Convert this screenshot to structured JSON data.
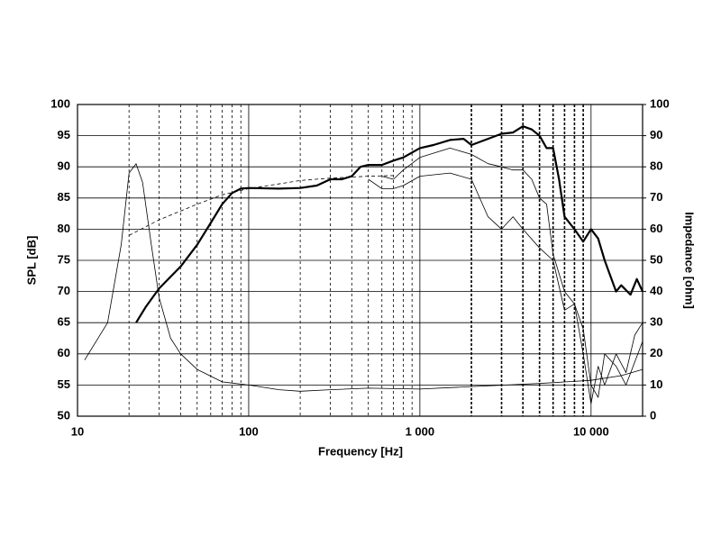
{
  "chart_data": {
    "type": "line",
    "xlabel": "Frequency [Hz]",
    "ylabel": "SPL [dB]",
    "y2label": "Impedance [ohm]",
    "xscale": "log",
    "xlim": [
      10,
      20000
    ],
    "xticks": [
      10,
      100,
      {
        "value": 1000,
        "label": "1 000"
      },
      {
        "value": 10000,
        "label": "10 000"
      }
    ],
    "xminor": [
      20,
      30,
      40,
      50,
      60,
      70,
      80,
      90,
      200,
      300,
      400,
      500,
      600,
      700,
      800,
      900,
      2000,
      3000,
      4000,
      5000,
      6000,
      7000,
      8000,
      9000
    ],
    "ylim": [
      50,
      100
    ],
    "yticks": [
      50,
      55,
      60,
      65,
      70,
      75,
      80,
      85,
      90,
      95,
      100
    ],
    "y2lim": [
      0,
      100
    ],
    "y2ticks": [
      0,
      10,
      20,
      30,
      40,
      50,
      60,
      70,
      80,
      90,
      100
    ],
    "grid": true,
    "series": [
      {
        "color": "#000000",
        "width": 2.2,
        "x": [
          22,
          25,
          30,
          40,
          50,
          60,
          70,
          80,
          90,
          100,
          150,
          200,
          250,
          300,
          350,
          400,
          450,
          500,
          600,
          700,
          800,
          1000,
          1200,
          1500,
          1800,
          2000,
          2500,
          3000,
          3500,
          4000,
          4500,
          5000,
          5500,
          6000,
          6500,
          7000,
          8000,
          9000,
          10000,
          11000,
          12000,
          14000,
          15000,
          17000,
          18500,
          20000
        ],
        "values": [
          65,
          67.5,
          70.5,
          74,
          77.5,
          81,
          84,
          85.8,
          86.5,
          86.6,
          86.5,
          86.6,
          87,
          88,
          88,
          88.5,
          90,
          90.3,
          90.3,
          91,
          91.5,
          93,
          93.5,
          94.3,
          94.5,
          93.5,
          94.5,
          95.3,
          95.5,
          96.5,
          96,
          95,
          93,
          93,
          88,
          82,
          80,
          78,
          80,
          78.5,
          75,
          70,
          71,
          69.5,
          72,
          70
        ]
      },
      {
        "color": "#000000",
        "width": 0.8,
        "x": [
          600,
          700,
          800,
          1000,
          1500,
          2000,
          2500,
          3000,
          3500,
          4000,
          4500,
          5000,
          5500,
          6000,
          7000,
          8000,
          9000,
          10000,
          11000,
          12000,
          14000,
          16000,
          18000,
          20000
        ],
        "values": [
          88.5,
          88,
          89.5,
          91.5,
          93,
          92,
          90.5,
          90,
          89.5,
          89.5,
          88,
          85,
          84,
          76,
          70,
          68,
          60,
          52,
          58,
          55,
          60,
          57,
          63,
          65
        ]
      },
      {
        "color": "#000000",
        "width": 0.8,
        "x": [
          500,
          600,
          700,
          800,
          1000,
          1500,
          2000,
          2500,
          3000,
          3500,
          4000,
          5000,
          6000,
          7000,
          8000,
          9000,
          10000,
          11000,
          12000,
          14000,
          16000,
          20000
        ],
        "values": [
          88,
          86.5,
          86.5,
          87,
          88.5,
          89,
          88,
          82,
          80,
          82,
          80,
          77,
          75,
          67,
          68,
          64,
          55,
          53,
          60,
          58,
          55,
          62
        ]
      },
      {
        "color": "#000000",
        "width": 0.8,
        "dashed": true,
        "x": [
          20,
          30,
          50,
          70,
          100,
          200,
          300,
          500,
          700
        ],
        "values": [
          79,
          81.5,
          84,
          85.5,
          86.5,
          87.8,
          88.2,
          88.5,
          88.6
        ]
      },
      {
        "color": "#000000",
        "width": 0.8,
        "axis": "y2",
        "x": [
          11,
          15,
          18,
          20,
          22,
          24,
          27,
          30,
          35,
          40,
          50,
          70,
          100,
          150,
          200,
          300,
          500,
          1000,
          2000,
          5000,
          10000,
          15000,
          20000
        ],
        "values": [
          18,
          30,
          55,
          78,
          81,
          75,
          55,
          38,
          25,
          20,
          15,
          11,
          10,
          8.5,
          8,
          8.5,
          9,
          8.7,
          9.5,
          10.5,
          11.5,
          13,
          15
        ]
      }
    ]
  }
}
